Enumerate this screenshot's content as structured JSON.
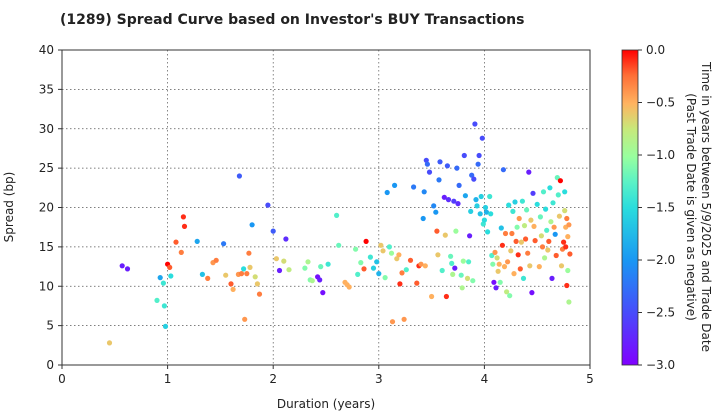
{
  "chart_data": {
    "type": "scatter",
    "title": "(1289)   Spread Curve based on Investor's BUY Transactions",
    "xlabel": "Duration (years)",
    "ylabel": "Spread (bp)",
    "xlim": [
      0,
      5
    ],
    "ylim": [
      0,
      40
    ],
    "xticks": [
      "0",
      "1",
      "2",
      "3",
      "4",
      "5"
    ],
    "yticks": [
      "0",
      "5",
      "10",
      "15",
      "20",
      "25",
      "30",
      "35",
      "40"
    ],
    "grid": true,
    "colorbar": {
      "label_line1": "Time in years between 5/9/2025 and Trade Date",
      "label_line2": "(Past Trade Date is given as negative)",
      "range": [
        -3.0,
        0.0
      ],
      "ticks": [
        "0.0",
        "−0.5",
        "−1.0",
        "−1.5",
        "−2.0",
        "−2.5",
        "−3.0"
      ],
      "colormap": "rainbow"
    },
    "points": [
      [
        0.45,
        2.8,
        -0.6
      ],
      [
        0.57,
        12.6,
        -2.8
      ],
      [
        0.62,
        12.2,
        -2.8
      ],
      [
        0.9,
        8.2,
        -1.3
      ],
      [
        0.93,
        11.1,
        -1.9
      ],
      [
        0.96,
        10.4,
        -1.4
      ],
      [
        0.97,
        7.5,
        -1.4
      ],
      [
        0.98,
        4.9,
        -1.6
      ],
      [
        1.0,
        12.8,
        -0.0
      ],
      [
        1.02,
        12.4,
        -0.2
      ],
      [
        1.03,
        11.3,
        -1.5
      ],
      [
        1.08,
        15.6,
        -0.2
      ],
      [
        1.13,
        14.3,
        -0.3
      ],
      [
        1.15,
        18.8,
        -0.1
      ],
      [
        1.16,
        17.6,
        -0.1
      ],
      [
        1.28,
        15.7,
        -1.9
      ],
      [
        1.33,
        11.5,
        -1.7
      ],
      [
        1.38,
        11.0,
        -0.3
      ],
      [
        1.43,
        13.0,
        -0.4
      ],
      [
        1.46,
        13.3,
        -0.3
      ],
      [
        1.53,
        15.4,
        -2.2
      ],
      [
        1.55,
        11.4,
        -0.6
      ],
      [
        1.6,
        10.3,
        -0.2
      ],
      [
        1.62,
        9.6,
        -0.5
      ],
      [
        1.67,
        11.5,
        -0.4
      ],
      [
        1.68,
        24.0,
        -2.4
      ],
      [
        1.7,
        11.6,
        -0.3
      ],
      [
        1.72,
        12.2,
        -1.5
      ],
      [
        1.73,
        5.8,
        -0.4
      ],
      [
        1.75,
        11.6,
        -0.3
      ],
      [
        1.77,
        14.2,
        -0.3
      ],
      [
        1.78,
        12.4,
        -0.6
      ],
      [
        1.8,
        17.8,
        -2.0
      ],
      [
        1.83,
        11.2,
        -0.7
      ],
      [
        1.85,
        10.3,
        -0.6
      ],
      [
        1.87,
        9.0,
        -0.3
      ],
      [
        1.95,
        20.3,
        -2.5
      ],
      [
        2.0,
        17.0,
        -2.4
      ],
      [
        2.03,
        13.5,
        -0.6
      ],
      [
        2.06,
        12.0,
        -2.8
      ],
      [
        2.1,
        13.2,
        -0.7
      ],
      [
        2.12,
        16.0,
        -2.7
      ],
      [
        2.15,
        12.1,
        -0.8
      ],
      [
        2.3,
        12.3,
        -1.1
      ],
      [
        2.33,
        13.1,
        -0.9
      ],
      [
        2.35,
        10.8,
        -1.1
      ],
      [
        2.37,
        10.7,
        -0.9
      ],
      [
        2.42,
        11.2,
        -2.9
      ],
      [
        2.44,
        10.8,
        -2.8
      ],
      [
        2.45,
        12.5,
        -1.2
      ],
      [
        2.47,
        9.2,
        -2.9
      ],
      [
        2.52,
        12.8,
        -1.4
      ],
      [
        2.6,
        19.0,
        -1.3
      ],
      [
        2.62,
        15.2,
        -1.2
      ],
      [
        2.68,
        10.5,
        -0.5
      ],
      [
        2.7,
        10.2,
        -0.5
      ],
      [
        2.72,
        9.9,
        -0.5
      ],
      [
        2.78,
        14.7,
        -1.1
      ],
      [
        2.8,
        11.5,
        -1.3
      ],
      [
        2.83,
        13.0,
        -1.1
      ],
      [
        2.86,
        12.2,
        -0.2
      ],
      [
        2.88,
        15.7,
        -0.0
      ],
      [
        2.92,
        13.7,
        -1.4
      ],
      [
        2.95,
        12.3,
        -1.6
      ],
      [
        2.98,
        13.1,
        -1.7
      ],
      [
        3.0,
        11.6,
        -1.8
      ],
      [
        3.02,
        15.2,
        -0.6
      ],
      [
        3.04,
        14.5,
        -0.6
      ],
      [
        3.06,
        11.1,
        -1.1
      ],
      [
        3.08,
        21.9,
        -2.0
      ],
      [
        3.1,
        15.0,
        -1.3
      ],
      [
        3.12,
        14.2,
        -1.0
      ],
      [
        3.13,
        5.5,
        -0.4
      ],
      [
        3.15,
        22.8,
        -2.0
      ],
      [
        3.17,
        13.5,
        -0.6
      ],
      [
        3.19,
        14.0,
        -0.5
      ],
      [
        3.2,
        10.3,
        -0.1
      ],
      [
        3.22,
        11.7,
        -0.3
      ],
      [
        3.24,
        5.8,
        -0.4
      ],
      [
        3.26,
        12.1,
        -1.3
      ],
      [
        3.3,
        13.3,
        -0.2
      ],
      [
        3.33,
        22.6,
        -2.2
      ],
      [
        3.36,
        10.4,
        -0.2
      ],
      [
        3.38,
        12.6,
        -0.1
      ],
      [
        3.4,
        12.8,
        -0.4
      ],
      [
        3.42,
        18.6,
        -2.0
      ],
      [
        3.43,
        22.0,
        -2.1
      ],
      [
        3.44,
        12.6,
        -0.5
      ],
      [
        3.45,
        26.0,
        -2.5
      ],
      [
        3.46,
        25.5,
        -2.3
      ],
      [
        3.48,
        24.5,
        -2.5
      ],
      [
        3.5,
        8.7,
        -0.5
      ],
      [
        3.52,
        20.2,
        -2.1
      ],
      [
        3.54,
        19.4,
        -2.0
      ],
      [
        3.55,
        17.0,
        -0.2
      ],
      [
        3.56,
        14.0,
        -0.6
      ],
      [
        3.57,
        23.5,
        -2.2
      ],
      [
        3.58,
        25.8,
        -2.4
      ],
      [
        3.6,
        12.0,
        -1.3
      ],
      [
        3.62,
        21.3,
        -2.8
      ],
      [
        3.63,
        16.5,
        -0.6
      ],
      [
        3.64,
        8.7,
        -0.1
      ],
      [
        3.65,
        25.3,
        -2.4
      ],
      [
        3.66,
        21.0,
        -2.7
      ],
      [
        3.68,
        13.8,
        -1.2
      ],
      [
        3.69,
        12.9,
        -1.3
      ],
      [
        3.7,
        11.5,
        -0.9
      ],
      [
        3.71,
        20.8,
        -2.6
      ],
      [
        3.72,
        12.3,
        -2.8
      ],
      [
        3.73,
        17.0,
        -1.0
      ],
      [
        3.74,
        25.0,
        -2.3
      ],
      [
        3.75,
        20.5,
        -2.7
      ],
      [
        3.76,
        22.8,
        -2.3
      ],
      [
        3.78,
        11.4,
        -1.2
      ],
      [
        3.79,
        9.8,
        -0.9
      ],
      [
        3.8,
        13.2,
        -1.0
      ],
      [
        3.81,
        26.6,
        -2.5
      ],
      [
        3.82,
        21.5,
        -1.9
      ],
      [
        3.84,
        11.0,
        -0.7
      ],
      [
        3.85,
        13.1,
        -1.3
      ],
      [
        3.86,
        16.4,
        -2.8
      ],
      [
        3.87,
        19.5,
        -1.6
      ],
      [
        3.88,
        24.1,
        -2.3
      ],
      [
        3.89,
        10.7,
        -1.1
      ],
      [
        3.9,
        23.6,
        -2.5
      ],
      [
        3.91,
        30.6,
        -2.5
      ],
      [
        3.92,
        21.0,
        -1.8
      ],
      [
        3.93,
        20.2,
        -1.6
      ],
      [
        3.94,
        25.5,
        -2.3
      ],
      [
        3.95,
        26.6,
        -2.5
      ],
      [
        3.96,
        19.2,
        -1.7
      ],
      [
        3.97,
        21.4,
        -1.6
      ],
      [
        3.98,
        28.8,
        -2.5
      ],
      [
        3.99,
        17.9,
        -1.4
      ],
      [
        4.0,
        18.4,
        -1.5
      ],
      [
        4.01,
        20.0,
        -1.6
      ],
      [
        4.02,
        19.4,
        -1.8
      ],
      [
        4.03,
        16.9,
        -1.5
      ],
      [
        4.05,
        21.4,
        -1.4
      ],
      [
        4.06,
        19.2,
        -1.5
      ],
      [
        4.07,
        13.9,
        -1.3
      ],
      [
        4.08,
        12.8,
        -1.1
      ],
      [
        4.09,
        10.5,
        -2.9
      ],
      [
        4.1,
        14.3,
        -0.4
      ],
      [
        4.11,
        9.8,
        -2.8
      ],
      [
        4.12,
        13.6,
        -0.7
      ],
      [
        4.13,
        11.9,
        -0.6
      ],
      [
        4.14,
        12.8,
        -0.5
      ],
      [
        4.15,
        10.5,
        -1.1
      ],
      [
        4.16,
        17.4,
        -1.7
      ],
      [
        4.17,
        15.2,
        -0.1
      ],
      [
        4.18,
        24.8,
        -2.3
      ],
      [
        4.19,
        12.5,
        -0.5
      ],
      [
        4.2,
        16.7,
        -0.3
      ],
      [
        4.21,
        9.3,
        -0.8
      ],
      [
        4.22,
        13.1,
        -0.4
      ],
      [
        4.23,
        20.3,
        -1.5
      ],
      [
        4.24,
        8.8,
        -1.1
      ],
      [
        4.25,
        14.5,
        -0.6
      ],
      [
        4.26,
        16.7,
        -0.3
      ],
      [
        4.27,
        19.5,
        -1.4
      ],
      [
        4.28,
        11.6,
        -0.5
      ],
      [
        4.29,
        20.7,
        -1.6
      ],
      [
        4.3,
        15.7,
        -0.2
      ],
      [
        4.31,
        17.5,
        -1.1
      ],
      [
        4.32,
        14.0,
        -0.1
      ],
      [
        4.33,
        18.6,
        -0.4
      ],
      [
        4.34,
        12.2,
        -0.2
      ],
      [
        4.35,
        15.6,
        -0.6
      ],
      [
        4.36,
        20.8,
        -1.4
      ],
      [
        4.37,
        11.0,
        -1.4
      ],
      [
        4.38,
        17.7,
        -0.8
      ],
      [
        4.39,
        16.0,
        -0.2
      ],
      [
        4.4,
        19.7,
        -1.2
      ],
      [
        4.41,
        14.2,
        -0.3
      ],
      [
        4.42,
        24.5,
        -2.8
      ],
      [
        4.43,
        12.6,
        -0.6
      ],
      [
        4.44,
        18.4,
        -0.6
      ],
      [
        4.45,
        9.2,
        -2.9
      ],
      [
        4.46,
        21.8,
        -2.6
      ],
      [
        4.47,
        17.6,
        -0.5
      ],
      [
        4.48,
        15.8,
        -0.2
      ],
      [
        4.5,
        20.4,
        -1.5
      ],
      [
        4.52,
        12.5,
        -0.5
      ],
      [
        4.53,
        18.8,
        -1.2
      ],
      [
        4.54,
        16.4,
        -0.7
      ],
      [
        4.55,
        15.0,
        -0.3
      ],
      [
        4.56,
        22.0,
        -1.3
      ],
      [
        4.57,
        13.6,
        -0.9
      ],
      [
        4.58,
        19.8,
        -1.5
      ],
      [
        4.59,
        17.1,
        -1.3
      ],
      [
        4.6,
        14.6,
        -0.6
      ],
      [
        4.61,
        15.7,
        -0.2
      ],
      [
        4.62,
        22.5,
        -1.5
      ],
      [
        4.63,
        18.2,
        -0.9
      ],
      [
        4.64,
        11.0,
        -2.8
      ],
      [
        4.65,
        20.6,
        -1.4
      ],
      [
        4.66,
        17.5,
        -0.4
      ],
      [
        4.67,
        16.6,
        -2.0
      ],
      [
        4.68,
        13.9,
        -0.2
      ],
      [
        4.69,
        23.8,
        -1.2
      ],
      [
        4.7,
        21.6,
        -1.3
      ],
      [
        4.71,
        18.9,
        -0.6
      ],
      [
        4.72,
        23.4,
        -0.0
      ],
      [
        4.73,
        12.6,
        -0.6
      ],
      [
        4.74,
        14.7,
        -0.3
      ],
      [
        4.75,
        15.6,
        -0.1
      ],
      [
        4.76,
        22.0,
        -1.5
      ],
      [
        4.77,
        17.5,
        -0.5
      ],
      [
        4.78,
        10.1,
        -0.1
      ],
      [
        4.79,
        16.3,
        -0.5
      ],
      [
        4.8,
        17.8,
        -0.4
      ],
      [
        4.81,
        14.1,
        -0.2
      ],
      [
        4.78,
        18.6,
        -0.3
      ],
      [
        4.8,
        8.0,
        -0.9
      ],
      [
        4.77,
        15.0,
        -0.1
      ],
      [
        4.79,
        12.0,
        -1.0
      ],
      [
        4.76,
        19.6,
        -0.7
      ]
    ]
  }
}
